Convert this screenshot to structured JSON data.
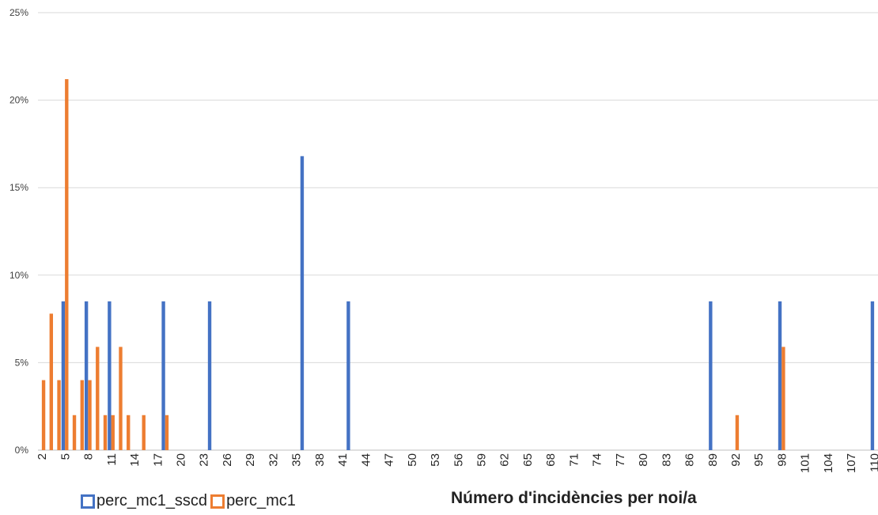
{
  "chart_data": {
    "type": "bar",
    "title": "",
    "xlabel": "Número d'incidències per noi/a",
    "ylabel": "",
    "ylim": [
      0,
      25
    ],
    "y_ticks": [
      "0%",
      "5%",
      "10%",
      "15%",
      "20%",
      "25%"
    ],
    "x_min": 2,
    "x_max": 110,
    "x_tick_labels": [
      "2",
      "5",
      "8",
      "11",
      "14",
      "17",
      "20",
      "23",
      "26",
      "29",
      "32",
      "35",
      "38",
      "41",
      "44",
      "47",
      "50",
      "53",
      "56",
      "59",
      "62",
      "65",
      "68",
      "71",
      "74",
      "77",
      "80",
      "83",
      "86",
      "89",
      "92",
      "95",
      "98",
      "101",
      "104",
      "107",
      "110"
    ],
    "grid": true,
    "legend_position": "bottom-left",
    "series": [
      {
        "name": "perc_mc1_sscd",
        "color": "#4472C4",
        "points": [
          {
            "x": 5,
            "y": 8.5
          },
          {
            "x": 8,
            "y": 8.5
          },
          {
            "x": 11,
            "y": 8.5
          },
          {
            "x": 18,
            "y": 8.5
          },
          {
            "x": 24,
            "y": 8.5
          },
          {
            "x": 36,
            "y": 16.8
          },
          {
            "x": 42,
            "y": 8.5
          },
          {
            "x": 89,
            "y": 8.5
          },
          {
            "x": 98,
            "y": 8.5
          },
          {
            "x": 110,
            "y": 8.5
          }
        ]
      },
      {
        "name": "perc_mc1",
        "color": "#ED7D31",
        "points": [
          {
            "x": 2,
            "y": 4.0
          },
          {
            "x": 3,
            "y": 7.8
          },
          {
            "x": 4,
            "y": 4.0
          },
          {
            "x": 5,
            "y": 21.2
          },
          {
            "x": 6,
            "y": 2.0
          },
          {
            "x": 7,
            "y": 4.0
          },
          {
            "x": 8,
            "y": 4.0
          },
          {
            "x": 9,
            "y": 5.9
          },
          {
            "x": 10,
            "y": 2.0
          },
          {
            "x": 11,
            "y": 2.0
          },
          {
            "x": 12,
            "y": 5.9
          },
          {
            "x": 13,
            "y": 2.0
          },
          {
            "x": 15,
            "y": 2.0
          },
          {
            "x": 18,
            "y": 2.0
          },
          {
            "x": 92,
            "y": 2.0
          },
          {
            "x": 98,
            "y": 5.9
          }
        ]
      }
    ]
  }
}
